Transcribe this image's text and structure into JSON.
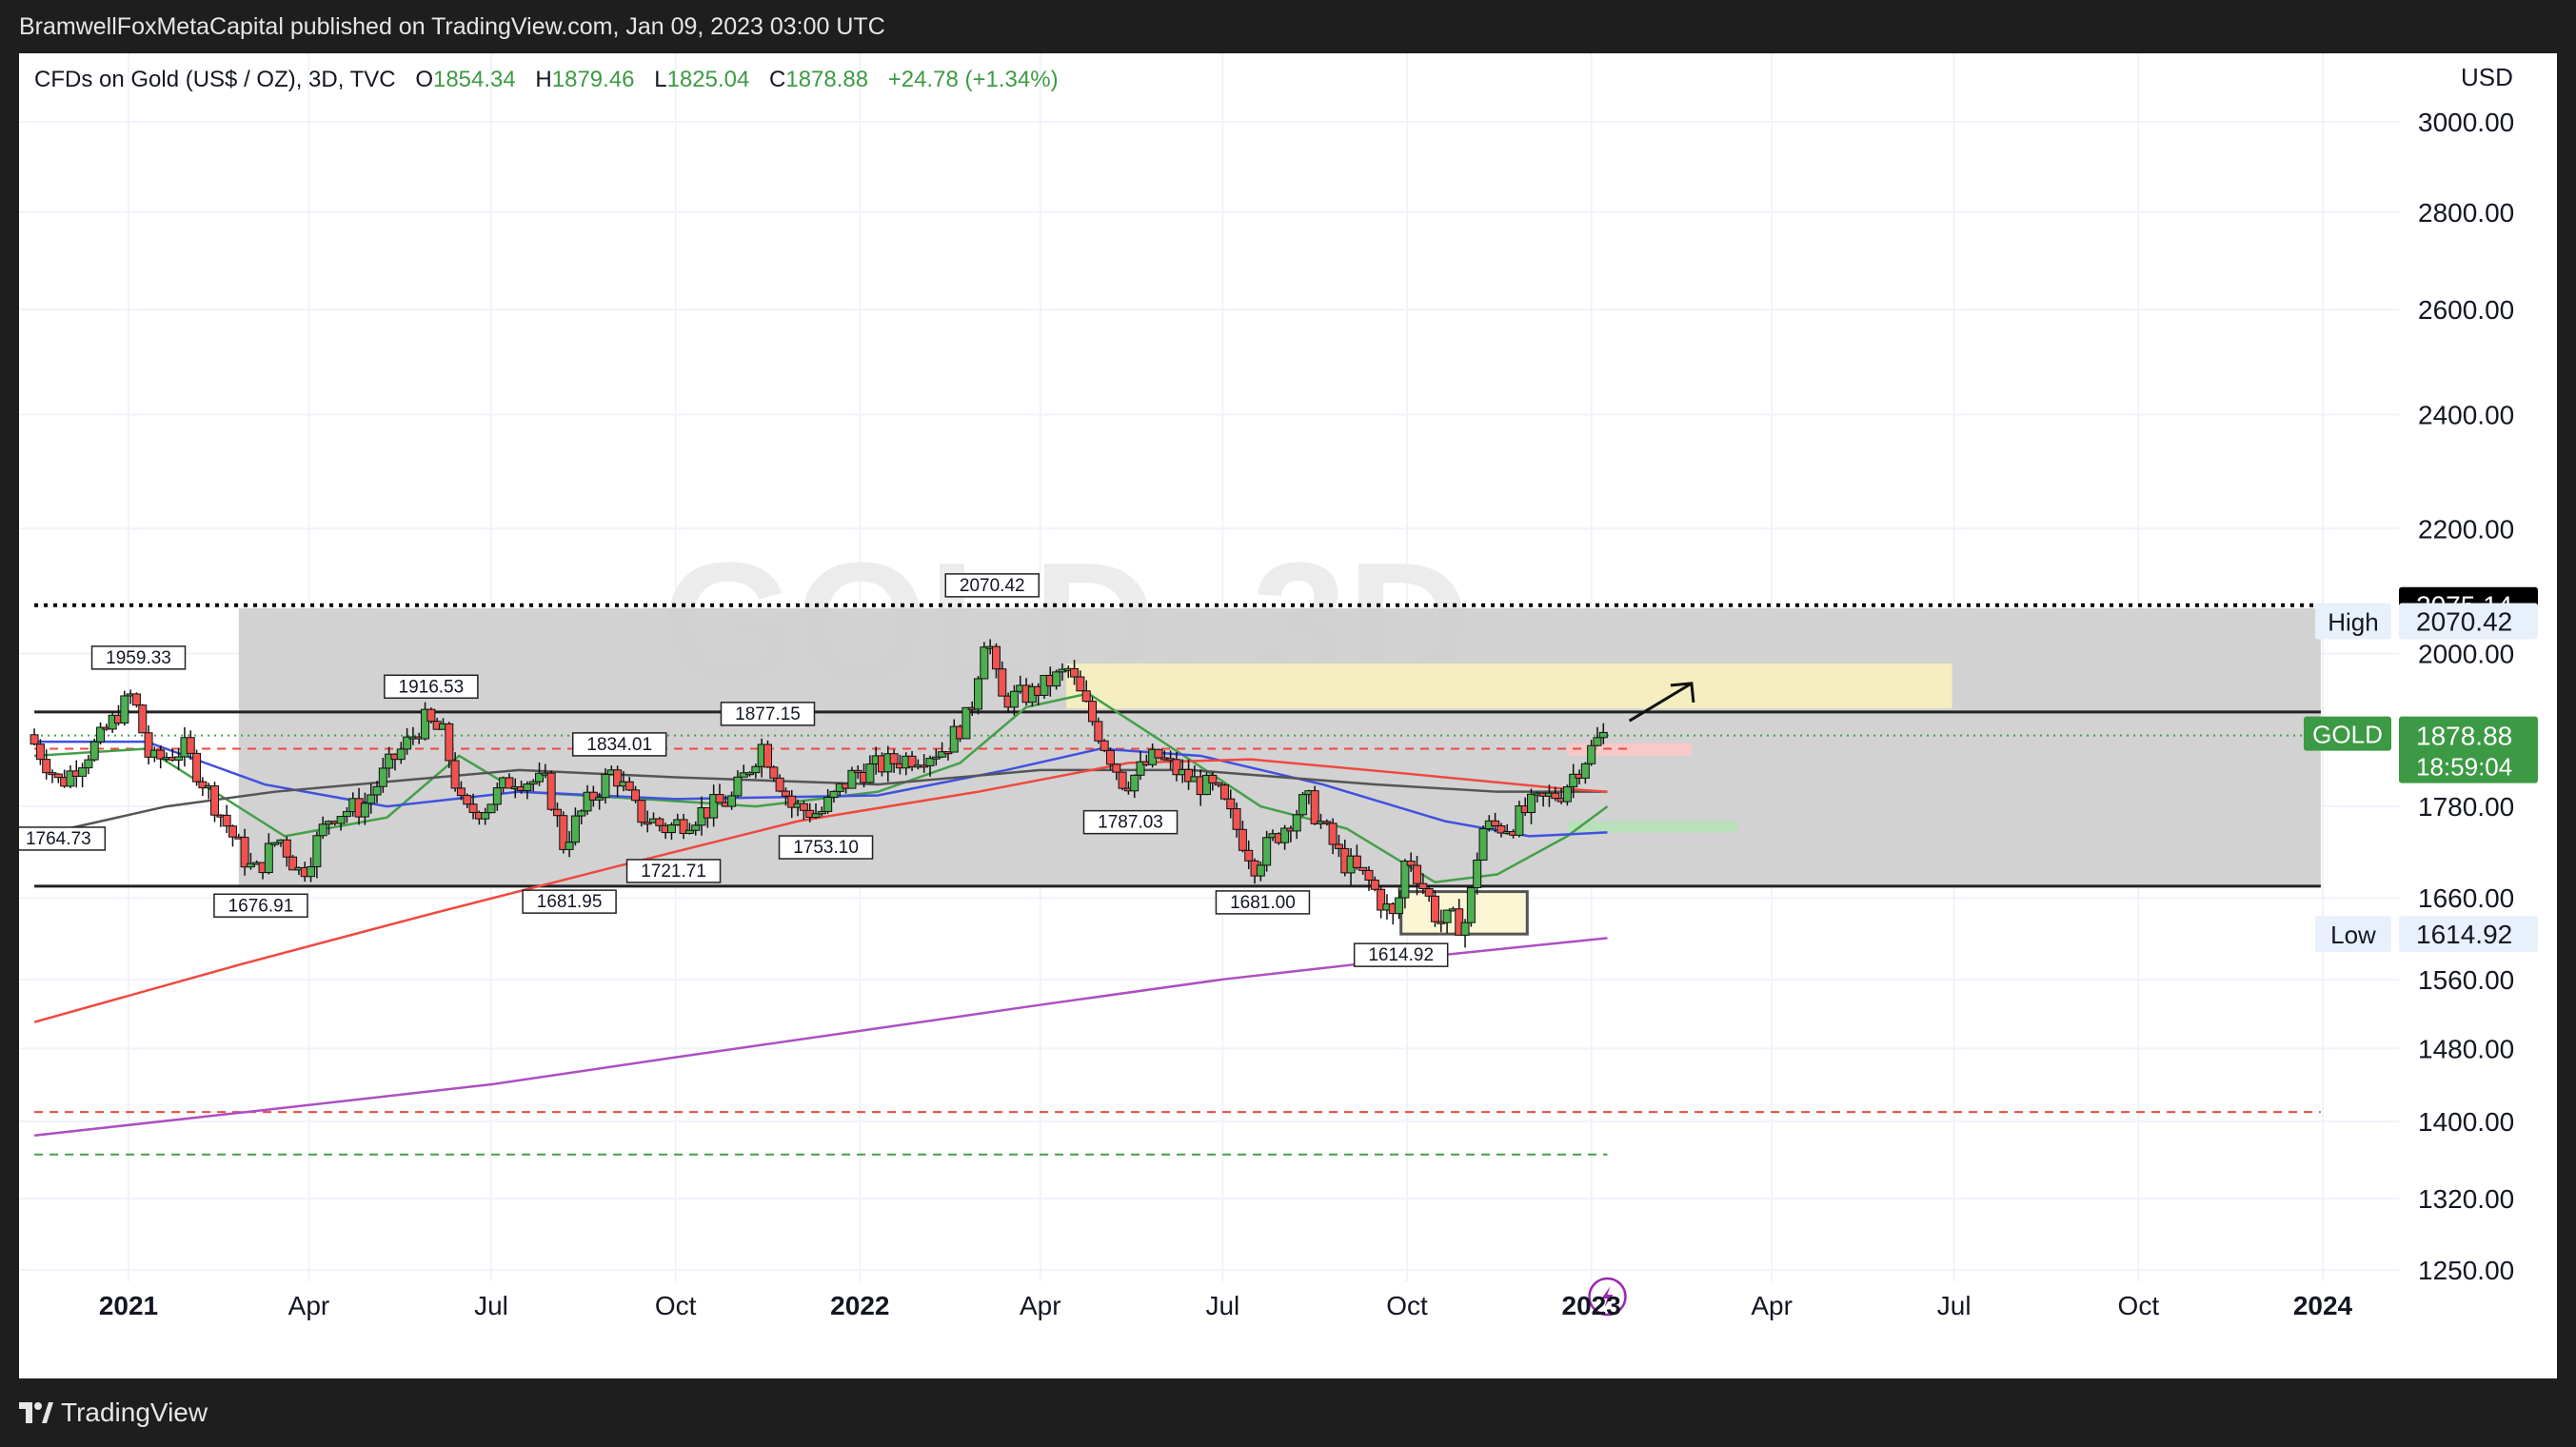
{
  "publisher_line": "BramwellFoxMetaCapital published on TradingView.com, Jan 09, 2023 03:00 UTC",
  "header": {
    "symbol": "CFDs on Gold (US$ / OZ), 3D, TVC",
    "o_label": "O",
    "o_value": "1854.34",
    "h_label": "H",
    "h_value": "1879.46",
    "l_label": "L",
    "l_value": "1825.04",
    "c_label": "C",
    "c_value": "1878.88",
    "change": "+24.78 (+1.34%)"
  },
  "watermark": "GOLD, 3D",
  "footer": {
    "brand": "TradingView"
  },
  "colors": {
    "up": "#4caf50",
    "down": "#ef5350",
    "ema_green": "#43a047",
    "ma_blue": "#3f51e0",
    "ma_dark": "#555555",
    "ma_red": "#f0483e",
    "ma_purple": "#ad4fc1",
    "range_box": "#d0d0d0",
    "yellow_zone": "#f4eec1",
    "red_zone": "#f7c9c9",
    "green_zone": "#b8e0b9"
  },
  "chart_data": {
    "type": "candlestick",
    "y_axis_unit": "USD",
    "y_ticks": [
      3000.0,
      2800.0,
      2600.0,
      2400.0,
      2200.0,
      2000.0,
      1780.0,
      1660.0,
      1560.0,
      1480.0,
      1400.0,
      1320.0,
      1250.0
    ],
    "y_scale": "log",
    "x_ticks": [
      {
        "label": "2021",
        "date": "2021-01-01",
        "bold": true
      },
      {
        "label": "Apr",
        "date": "2021-04-01"
      },
      {
        "label": "Jul",
        "date": "2021-07-01"
      },
      {
        "label": "Oct",
        "date": "2021-10-01"
      },
      {
        "label": "2022",
        "date": "2022-01-01",
        "bold": true
      },
      {
        "label": "Apr",
        "date": "2022-04-01"
      },
      {
        "label": "Jul",
        "date": "2022-07-01"
      },
      {
        "label": "Oct",
        "date": "2022-10-01"
      },
      {
        "label": "2023",
        "date": "2023-01-01",
        "bold": true
      },
      {
        "label": "Apr",
        "date": "2023-04-01"
      },
      {
        "label": "Jul",
        "date": "2023-07-01"
      },
      {
        "label": "Oct",
        "date": "2023-10-01"
      },
      {
        "label": "2024",
        "date": "2024-01-01",
        "bold": true
      }
    ],
    "price_path": [
      [
        "2020-11-15",
        1880
      ],
      [
        "2020-12-01",
        1810
      ],
      [
        "2020-12-10",
        1840
      ],
      [
        "2020-12-20",
        1870
      ],
      [
        "2021-01-06",
        1940
      ],
      [
        "2021-01-15",
        1840
      ],
      [
        "2021-02-01",
        1860
      ],
      [
        "2021-02-15",
        1790
      ],
      [
        "2021-03-01",
        1720
      ],
      [
        "2021-03-08",
        1690
      ],
      [
        "2021-03-20",
        1740
      ],
      [
        "2021-03-31",
        1690
      ],
      [
        "2021-04-15",
        1770
      ],
      [
        "2021-05-01",
        1780
      ],
      [
        "2021-05-15",
        1840
      ],
      [
        "2021-06-01",
        1900
      ],
      [
        "2021-06-10",
        1880
      ],
      [
        "2021-06-20",
        1770
      ],
      [
        "2021-07-01",
        1780
      ],
      [
        "2021-07-15",
        1820
      ],
      [
        "2021-08-01",
        1810
      ],
      [
        "2021-08-09",
        1730
      ],
      [
        "2021-08-20",
        1780
      ],
      [
        "2021-09-03",
        1830
      ],
      [
        "2021-09-15",
        1770
      ],
      [
        "2021-09-30",
        1750
      ],
      [
        "2021-10-15",
        1770
      ],
      [
        "2021-11-01",
        1790
      ],
      [
        "2021-11-16",
        1865
      ],
      [
        "2021-12-01",
        1780
      ],
      [
        "2021-12-15",
        1770
      ],
      [
        "2022-01-01",
        1825
      ],
      [
        "2022-01-25",
        1845
      ],
      [
        "2022-02-15",
        1860
      ],
      [
        "2022-02-28",
        1910
      ],
      [
        "2022-03-08",
        2040
      ],
      [
        "2022-03-15",
        1930
      ],
      [
        "2022-03-31",
        1940
      ],
      [
        "2022-04-18",
        1975
      ],
      [
        "2022-04-30",
        1900
      ],
      [
        "2022-05-16",
        1810
      ],
      [
        "2022-06-01",
        1850
      ],
      [
        "2022-06-15",
        1820
      ],
      [
        "2022-07-01",
        1800
      ],
      [
        "2022-07-20",
        1705
      ],
      [
        "2022-08-15",
        1790
      ],
      [
        "2022-09-01",
        1710
      ],
      [
        "2022-09-15",
        1680
      ],
      [
        "2022-09-28",
        1630
      ],
      [
        "2022-10-04",
        1720
      ],
      [
        "2022-10-20",
        1630
      ],
      [
        "2022-11-03",
        1630
      ],
      [
        "2022-11-10",
        1750
      ],
      [
        "2022-11-25",
        1755
      ],
      [
        "2022-12-05",
        1780
      ],
      [
        "2022-12-20",
        1800
      ],
      [
        "2023-01-09",
        1878.88
      ]
    ],
    "moving_averages": [
      {
        "color": "#43a047",
        "points": [
          [
            "2020-11-15",
            1850
          ],
          [
            "2021-01-10",
            1860
          ],
          [
            "2021-03-20",
            1740
          ],
          [
            "2021-05-10",
            1765
          ],
          [
            "2021-06-15",
            1850
          ],
          [
            "2021-07-15",
            1800
          ],
          [
            "2021-09-15",
            1790
          ],
          [
            "2021-11-10",
            1780
          ],
          [
            "2022-01-10",
            1800
          ],
          [
            "2022-02-20",
            1840
          ],
          [
            "2022-03-25",
            1920
          ],
          [
            "2022-04-25",
            1940
          ],
          [
            "2022-06-01",
            1870
          ],
          [
            "2022-07-20",
            1780
          ],
          [
            "2022-09-01",
            1750
          ],
          [
            "2022-10-15",
            1680
          ],
          [
            "2022-11-15",
            1690
          ],
          [
            "2022-12-20",
            1740
          ],
          [
            "2023-01-09",
            1780
          ]
        ]
      },
      {
        "color": "#3f51e0",
        "points": [
          [
            "2020-11-15",
            1870
          ],
          [
            "2021-01-10",
            1870
          ],
          [
            "2021-03-10",
            1810
          ],
          [
            "2021-05-10",
            1780
          ],
          [
            "2021-07-15",
            1800
          ],
          [
            "2021-10-01",
            1790
          ],
          [
            "2022-01-10",
            1795
          ],
          [
            "2022-03-15",
            1830
          ],
          [
            "2022-05-01",
            1860
          ],
          [
            "2022-06-20",
            1850
          ],
          [
            "2022-08-20",
            1810
          ],
          [
            "2022-10-20",
            1760
          ],
          [
            "2022-12-01",
            1740
          ],
          [
            "2023-01-09",
            1745
          ]
        ]
      },
      {
        "color": "#555555",
        "points": [
          [
            "2020-11-15",
            1740
          ],
          [
            "2021-01-20",
            1780
          ],
          [
            "2021-03-15",
            1800
          ],
          [
            "2021-05-15",
            1815
          ],
          [
            "2021-07-15",
            1830
          ],
          [
            "2021-10-01",
            1820
          ],
          [
            "2022-01-10",
            1810
          ],
          [
            "2022-04-01",
            1830
          ],
          [
            "2022-06-15",
            1830
          ],
          [
            "2022-09-15",
            1810
          ],
          [
            "2022-11-15",
            1800
          ],
          [
            "2023-01-09",
            1800
          ]
        ]
      },
      {
        "color": "#f0483e",
        "points": [
          [
            "2020-11-15",
            1510
          ],
          [
            "2021-03-01",
            1580
          ],
          [
            "2021-06-01",
            1640
          ],
          [
            "2021-09-01",
            1700
          ],
          [
            "2021-12-01",
            1760
          ],
          [
            "2022-03-01",
            1800
          ],
          [
            "2022-05-15",
            1840
          ],
          [
            "2022-07-15",
            1845
          ],
          [
            "2022-10-01",
            1825
          ],
          [
            "2022-12-15",
            1805
          ],
          [
            "2023-01-09",
            1800
          ]
        ]
      },
      {
        "color": "#ad4fc1",
        "points": [
          [
            "2020-11-15",
            1385
          ],
          [
            "2021-03-01",
            1410
          ],
          [
            "2021-07-01",
            1440
          ],
          [
            "2021-10-01",
            1470
          ],
          [
            "2022-01-01",
            1500
          ],
          [
            "2022-04-01",
            1530
          ],
          [
            "2022-07-01",
            1560
          ],
          [
            "2022-10-01",
            1585
          ],
          [
            "2023-01-09",
            1610
          ]
        ]
      }
    ],
    "pivot_labels": [
      {
        "date": "2020-11-27",
        "price": 1764.73,
        "text": "1764.73",
        "pos": "below"
      },
      {
        "date": "2021-01-06",
        "price": 1959.33,
        "text": "1959.33",
        "pos": "above"
      },
      {
        "date": "2021-03-08",
        "price": 1676.91,
        "text": "1676.91",
        "pos": "below"
      },
      {
        "date": "2021-06-01",
        "price": 1916.53,
        "text": "1916.53",
        "pos": "above"
      },
      {
        "date": "2021-08-09",
        "price": 1681.95,
        "text": "1681.95",
        "pos": "below"
      },
      {
        "date": "2021-09-03",
        "price": 1834.01,
        "text": "1834.01",
        "pos": "above"
      },
      {
        "date": "2021-09-30",
        "price": 1721.71,
        "text": "1721.71",
        "pos": "below"
      },
      {
        "date": "2021-11-16",
        "price": 1877.15,
        "text": "1877.15",
        "pos": "above"
      },
      {
        "date": "2021-12-15",
        "price": 1753.1,
        "text": "1753.10",
        "pos": "below"
      },
      {
        "date": "2022-03-08",
        "price": 2070.42,
        "text": "2070.42",
        "pos": "above"
      },
      {
        "date": "2022-05-16",
        "price": 1787.03,
        "text": "1787.03",
        "pos": "below"
      },
      {
        "date": "2022-07-21",
        "price": 1681.0,
        "text": "1681.00",
        "pos": "below"
      },
      {
        "date": "2022-09-28",
        "price": 1614.92,
        "text": "1614.92",
        "pos": "below"
      }
    ],
    "range_box": {
      "start": "2021-02-25",
      "end": "2023-12-31",
      "top": 2070.42,
      "bottom": 1675
    },
    "horizontal_lines": [
      {
        "price": 2075.14,
        "style": "dotted",
        "color": "#000000",
        "start": "2020-11-15",
        "end": "2023-12-31"
      },
      {
        "price": 1913,
        "style": "solid",
        "color": "#222222",
        "start": "2020-11-15",
        "end": "2023-12-31"
      },
      {
        "price": 1675,
        "style": "solid",
        "color": "#222222",
        "start": "2020-11-15",
        "end": "2023-12-31"
      },
      {
        "price": 1860,
        "style": "dashed",
        "color": "#f0483e",
        "start": "2020-11-15",
        "end": "2023-01-20"
      },
      {
        "price": 1410,
        "style": "dashed",
        "color": "#f0483e",
        "start": "2020-11-15",
        "end": "2023-12-31"
      },
      {
        "price": 1365,
        "style": "dashed",
        "color": "#43a047",
        "start": "2020-11-15",
        "end": "2023-01-09"
      },
      {
        "price": 1878.88,
        "style": "dotted",
        "color": "#43a047",
        "start": "2020-11-15",
        "end": "2023-12-31"
      }
    ],
    "zones": [
      {
        "start": "2022-04-14",
        "end": "2023-06-30",
        "top": 1985,
        "bottom": 1918,
        "color": "#f4eec1"
      },
      {
        "start": "2022-12-20",
        "end": "2023-02-20",
        "top": 1868,
        "bottom": 1850,
        "color": "#f7c9c9"
      },
      {
        "start": "2022-12-20",
        "end": "2023-03-15",
        "top": 1760,
        "bottom": 1745,
        "color": "#b8e0b9"
      },
      {
        "start": "2022-09-28",
        "end": "2022-11-30",
        "top": 1668,
        "bottom": 1614.92,
        "color": "#fbf7d5",
        "border": "#555555"
      }
    ],
    "arrow": {
      "from": [
        "2023-01-20",
        1900
      ],
      "to": [
        "2023-02-20",
        1955
      ]
    },
    "price_labels": [
      {
        "text": "2075.14",
        "price": 2075.14,
        "bg": "#000000",
        "fg": "#ffffff"
      },
      {
        "text": "2070.42",
        "price": 2050,
        "bg": "#e8f0fb",
        "fg": "#131722",
        "tag": "High"
      },
      {
        "text": "1878.88",
        "price": 1878.88,
        "bg": "#3d9a44",
        "fg": "#ffffff",
        "tag": "GOLD",
        "sub": "18:59:04"
      },
      {
        "text": "1614.92",
        "price": 1614.92,
        "bg": "#e8f0fb",
        "fg": "#131722",
        "tag": "Low"
      }
    ]
  }
}
